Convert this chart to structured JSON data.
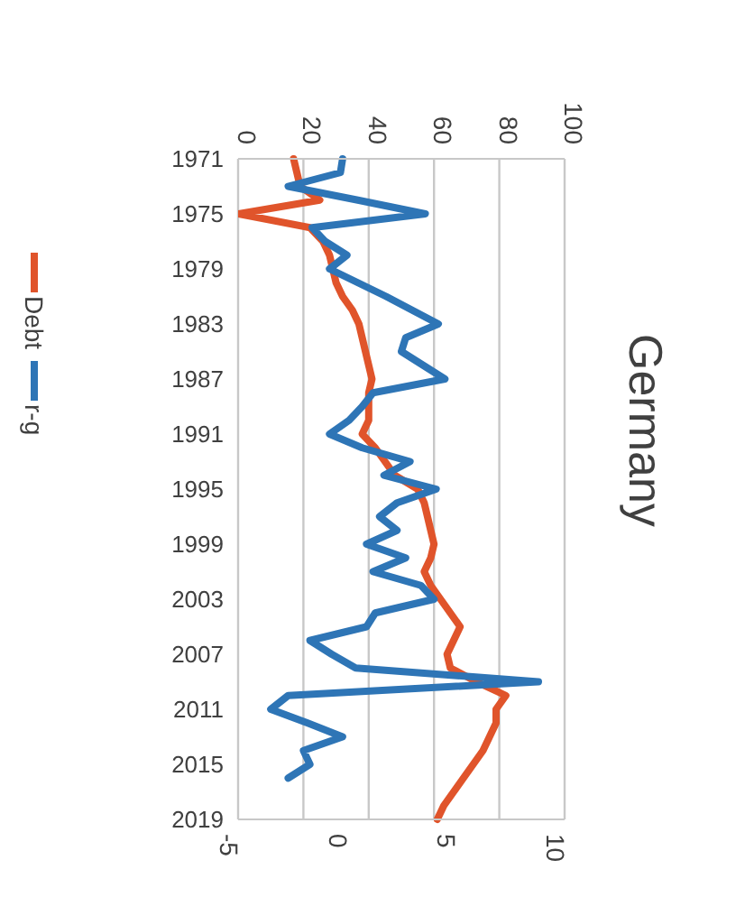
{
  "chart_data": {
    "type": "line",
    "title": "Germany",
    "orientation": "horizontal",
    "categories": [
      "1971",
      null,
      null,
      null,
      "1975",
      null,
      null,
      null,
      "1979",
      null,
      null,
      null,
      "1983",
      null,
      null,
      null,
      "1987",
      null,
      null,
      null,
      "1991",
      null,
      null,
      null,
      "1995",
      null,
      null,
      null,
      "1999",
      null,
      null,
      null,
      "2003",
      null,
      null,
      null,
      "2007",
      null,
      null,
      null,
      "2011",
      null,
      null,
      null,
      "2015",
      null,
      null,
      null,
      "2019"
    ],
    "series": [
      {
        "name": "Debt",
        "color": "#e0542b",
        "axis": "x2",
        "values": [
          17,
          18,
          19,
          25,
          0,
          22,
          26,
          28,
          29,
          30,
          32,
          35,
          37,
          38,
          39,
          40,
          41,
          40,
          40,
          40,
          38,
          42,
          45,
          48,
          55,
          57,
          58,
          59,
          60,
          59,
          57,
          59,
          62,
          65,
          68,
          66,
          64,
          65,
          73,
          82,
          79,
          79,
          77,
          75,
          72,
          69,
          66,
          63,
          61
        ]
      },
      {
        "name": "r-g",
        "color": "#2e75b6",
        "values": [
          -0.2,
          -0.3,
          -2.7,
          0.5,
          3.6,
          -1.6,
          -1.0,
          0,
          -0.8,
          0.5,
          1.8,
          3.0,
          4.2,
          2.7,
          2.5,
          3.5,
          4.5,
          1.2,
          0.7,
          0.1,
          -0.8,
          0.7,
          2.9,
          1.7,
          4.1,
          2.3,
          1.5,
          2.3,
          0.9,
          2.7,
          1.2,
          3.4,
          4.0,
          1.3,
          0.9,
          -1.7,
          -0.7,
          0.4,
          8.8,
          -2.7,
          -3.5,
          -1.8,
          -0.2,
          -2.0,
          -1.7,
          -2.7,
          null,
          null,
          null
        ]
      }
    ],
    "x2lim": [
      0,
      100
    ],
    "x2ticks": [
      0,
      20,
      40,
      60,
      80,
      100
    ],
    "xlim": [
      -5,
      10
    ],
    "xticks": [
      -5,
      0,
      5,
      10
    ],
    "grid": "x",
    "legend": "left",
    "marker": "none",
    "line_style": "solid"
  }
}
